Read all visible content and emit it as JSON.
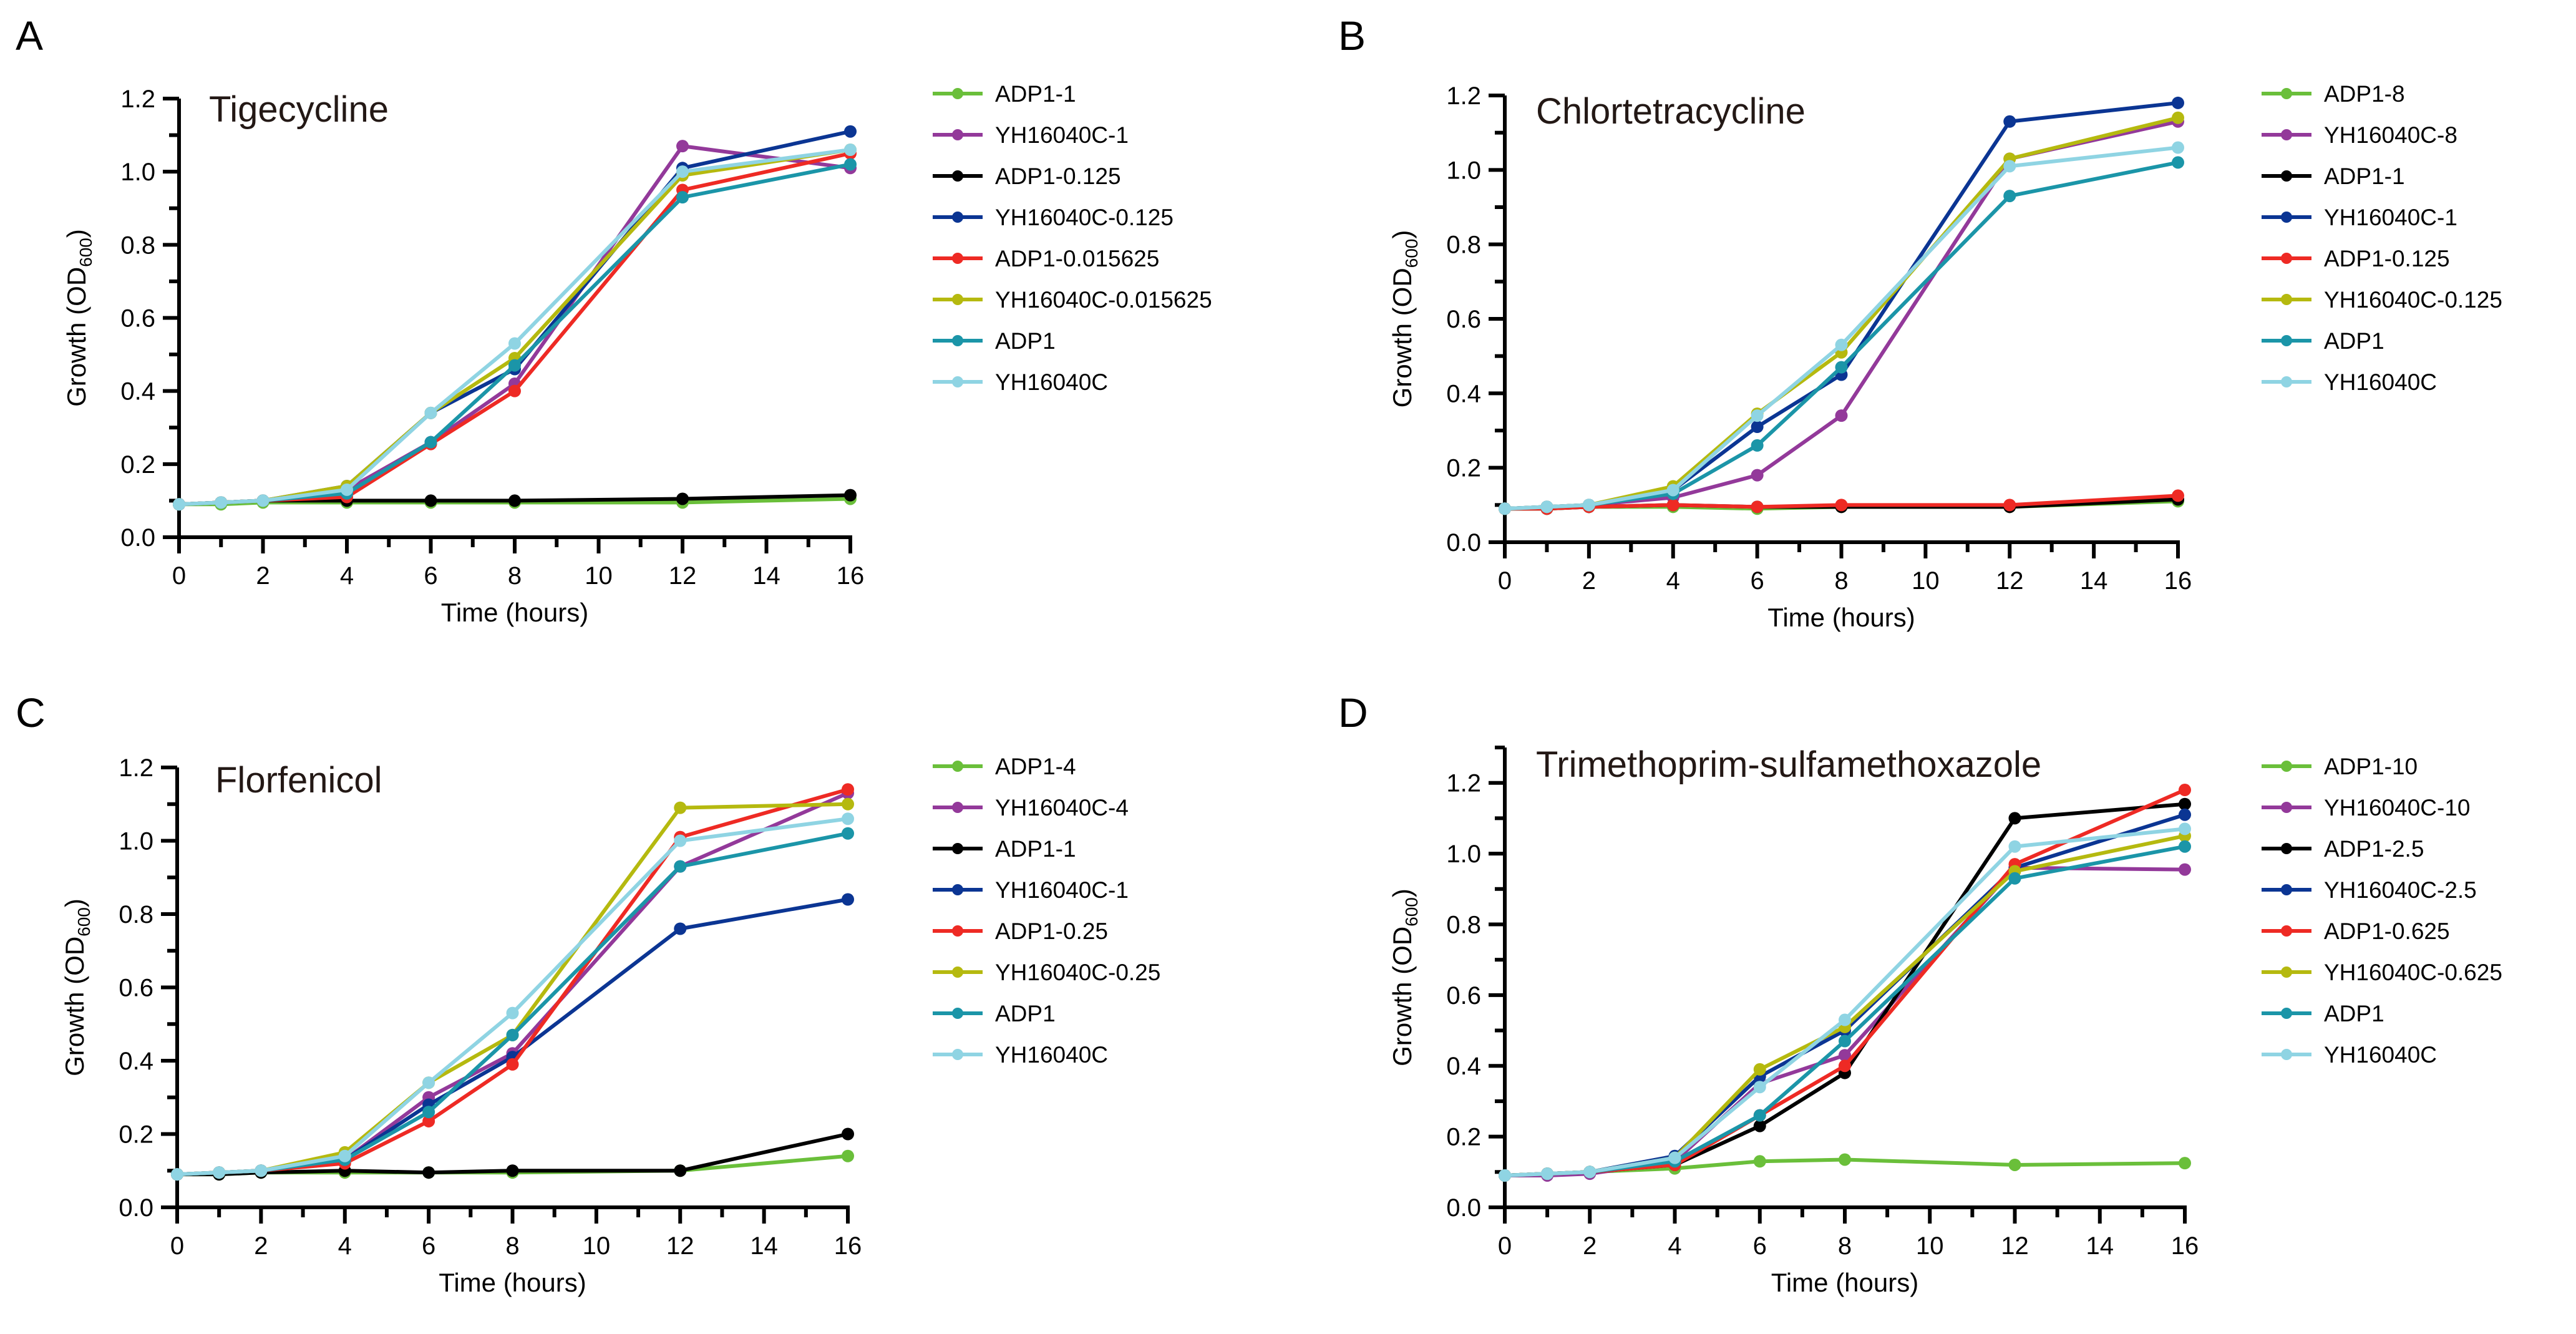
{
  "chart_data": [
    {
      "type": "line",
      "panel": "A",
      "title": "Tigecycline",
      "xlabel": "Time (hours)",
      "ylabel": "Growth (OD",
      "ylabel_sub": "600",
      "ylabel_end": ")",
      "xlim": [
        0,
        16
      ],
      "ylim": [
        0,
        1.2
      ],
      "xticks": [
        0,
        2,
        4,
        6,
        8,
        10,
        12,
        14,
        16
      ],
      "yticks": [
        "0.0",
        "0.2",
        "0.4",
        "0.6",
        "0.8",
        "1.0",
        "1.2"
      ],
      "x": [
        0,
        1,
        2,
        4,
        6,
        8,
        12,
        16
      ],
      "series": [
        {
          "name": "ADP1-1",
          "color": "#6abf3a",
          "values": [
            0.09,
            0.09,
            0.095,
            0.095,
            0.095,
            0.095,
            0.095,
            0.105
          ]
        },
        {
          "name": "YH16040C-1",
          "color": "#93399a",
          "values": [
            0.09,
            0.095,
            0.1,
            0.13,
            0.26,
            0.42,
            1.07,
            1.01
          ]
        },
        {
          "name": "ADP1-0.125",
          "color": "#000000",
          "values": [
            0.09,
            0.095,
            0.1,
            0.1,
            0.1,
            0.1,
            0.105,
            0.115
          ]
        },
        {
          "name": "YH16040C-0.125",
          "color": "#0b3593",
          "values": [
            0.09,
            0.095,
            0.1,
            0.14,
            0.34,
            0.46,
            1.01,
            1.11
          ]
        },
        {
          "name": "ADP1-0.015625",
          "color": "#ee2a24",
          "values": [
            0.09,
            0.095,
            0.1,
            0.11,
            0.255,
            0.4,
            0.95,
            1.05
          ]
        },
        {
          "name": "YH16040C-0.015625",
          "color": "#b5b90f",
          "values": [
            0.09,
            0.095,
            0.1,
            0.14,
            0.34,
            0.49,
            0.99,
            1.06
          ]
        },
        {
          "name": "ADP1",
          "color": "#1b95a8",
          "values": [
            0.09,
            0.095,
            0.1,
            0.12,
            0.26,
            0.47,
            0.93,
            1.02
          ]
        },
        {
          "name": "YH16040C",
          "color": "#8fd4e3",
          "values": [
            0.09,
            0.095,
            0.1,
            0.13,
            0.34,
            0.53,
            1.0,
            1.06
          ]
        }
      ]
    },
    {
      "type": "line",
      "panel": "B",
      "title": "Chlortetracycline",
      "xlabel": "Time (hours)",
      "ylabel": "Growth (OD",
      "ylabel_sub": "600",
      "ylabel_end": ")",
      "xlim": [
        0,
        16
      ],
      "ylim": [
        0,
        1.2
      ],
      "xticks": [
        0,
        2,
        4,
        6,
        8,
        10,
        12,
        14,
        16
      ],
      "yticks": [
        "0.0",
        "0.2",
        "0.4",
        "0.6",
        "0.8",
        "1.0",
        "1.2"
      ],
      "x": [
        0,
        1,
        2,
        4,
        6,
        8,
        12,
        16
      ],
      "series": [
        {
          "name": "ADP1-8",
          "color": "#6abf3a",
          "values": [
            0.09,
            0.09,
            0.095,
            0.095,
            0.09,
            0.095,
            0.095,
            0.11
          ]
        },
        {
          "name": "YH16040C-8",
          "color": "#93399a",
          "values": [
            0.09,
            0.095,
            0.1,
            0.12,
            0.18,
            0.34,
            1.03,
            1.13
          ]
        },
        {
          "name": "ADP1-1",
          "color": "#000000",
          "values": [
            0.09,
            0.09,
            0.095,
            0.1,
            0.095,
            0.095,
            0.095,
            0.115
          ]
        },
        {
          "name": "YH16040C-1",
          "color": "#0b3593",
          "values": [
            0.09,
            0.095,
            0.1,
            0.14,
            0.31,
            0.45,
            1.13,
            1.18
          ]
        },
        {
          "name": "ADP1-0.125",
          "color": "#ee2a24",
          "values": [
            0.09,
            0.09,
            0.095,
            0.1,
            0.095,
            0.1,
            0.1,
            0.125
          ]
        },
        {
          "name": "YH16040C-0.125",
          "color": "#b5b90f",
          "values": [
            0.09,
            0.095,
            0.1,
            0.15,
            0.345,
            0.51,
            1.03,
            1.14
          ]
        },
        {
          "name": "ADP1",
          "color": "#1b95a8",
          "values": [
            0.09,
            0.095,
            0.1,
            0.13,
            0.26,
            0.47,
            0.93,
            1.02
          ]
        },
        {
          "name": "YH16040C",
          "color": "#8fd4e3",
          "values": [
            0.09,
            0.095,
            0.1,
            0.14,
            0.34,
            0.53,
            1.01,
            1.06
          ]
        }
      ]
    },
    {
      "type": "line",
      "panel": "C",
      "title": "Florfenicol",
      "xlabel": "Time (hours)",
      "ylabel": "Growth (OD",
      "ylabel_sub": "600",
      "ylabel_end": ")",
      "xlim": [
        0,
        16
      ],
      "ylim": [
        0,
        1.2
      ],
      "xticks": [
        0,
        2,
        4,
        6,
        8,
        10,
        12,
        14,
        16
      ],
      "yticks": [
        "0.0",
        "0.2",
        "0.4",
        "0.6",
        "0.8",
        "1.0",
        "1.2"
      ],
      "x": [
        0,
        1,
        2,
        4,
        6,
        8,
        12,
        16
      ],
      "series": [
        {
          "name": "ADP1-4",
          "color": "#6abf3a",
          "values": [
            0.09,
            0.09,
            0.095,
            0.095,
            0.095,
            0.095,
            0.1,
            0.14
          ]
        },
        {
          "name": "YH16040C-4",
          "color": "#93399a",
          "values": [
            0.09,
            0.095,
            0.1,
            0.13,
            0.3,
            0.42,
            0.93,
            1.13
          ]
        },
        {
          "name": "ADP1-1",
          "color": "#000000",
          "values": [
            0.09,
            0.09,
            0.095,
            0.1,
            0.095,
            0.1,
            0.1,
            0.2
          ]
        },
        {
          "name": "YH16040C-1",
          "color": "#0b3593",
          "values": [
            0.09,
            0.095,
            0.1,
            0.13,
            0.28,
            0.41,
            0.76,
            0.84
          ]
        },
        {
          "name": "ADP1-0.25",
          "color": "#ee2a24",
          "values": [
            0.09,
            0.095,
            0.1,
            0.12,
            0.235,
            0.39,
            1.01,
            1.14
          ]
        },
        {
          "name": "YH16040C-0.25",
          "color": "#b5b90f",
          "values": [
            0.09,
            0.095,
            0.1,
            0.15,
            0.34,
            0.47,
            1.09,
            1.1
          ]
        },
        {
          "name": "ADP1",
          "color": "#1b95a8",
          "values": [
            0.09,
            0.095,
            0.1,
            0.13,
            0.26,
            0.47,
            0.93,
            1.02
          ]
        },
        {
          "name": "YH16040C",
          "color": "#8fd4e3",
          "values": [
            0.09,
            0.095,
            0.1,
            0.14,
            0.34,
            0.53,
            1.0,
            1.06
          ]
        }
      ]
    },
    {
      "type": "line",
      "panel": "D",
      "title": "Trimethoprim-sulfamethoxazole",
      "xlabel": "Time (hours)",
      "ylabel": "Growth (OD",
      "ylabel_sub": "600",
      "ylabel_end": ")",
      "xlim": [
        0,
        16
      ],
      "ylim": [
        0,
        1.3
      ],
      "xticks": [
        0,
        2,
        4,
        6,
        8,
        10,
        12,
        14,
        16
      ],
      "yticks": [
        "0.0",
        "0.2",
        "0.4",
        "0.6",
        "0.8",
        "1.0",
        "1.2"
      ],
      "x": [
        0,
        1,
        2,
        4,
        6,
        8,
        12,
        16
      ],
      "series": [
        {
          "name": "ADP1-10",
          "color": "#6abf3a",
          "values": [
            0.09,
            0.095,
            0.1,
            0.11,
            0.13,
            0.135,
            0.12,
            0.125
          ]
        },
        {
          "name": "YH16040C-10",
          "color": "#93399a",
          "values": [
            0.09,
            0.09,
            0.095,
            0.13,
            0.35,
            0.43,
            0.96,
            0.955
          ]
        },
        {
          "name": "ADP1-2.5",
          "color": "#000000",
          "values": [
            0.09,
            0.095,
            0.1,
            0.12,
            0.23,
            0.38,
            1.1,
            1.14
          ]
        },
        {
          "name": "YH16040C-2.5",
          "color": "#0b3593",
          "values": [
            0.09,
            0.095,
            0.1,
            0.145,
            0.37,
            0.5,
            0.96,
            1.11
          ]
        },
        {
          "name": "ADP1-0.625",
          "color": "#ee2a24",
          "values": [
            0.09,
            0.095,
            0.1,
            0.12,
            0.26,
            0.4,
            0.97,
            1.18
          ]
        },
        {
          "name": "YH16040C-0.625",
          "color": "#b5b90f",
          "values": [
            0.09,
            0.095,
            0.1,
            0.14,
            0.39,
            0.51,
            0.95,
            1.05
          ]
        },
        {
          "name": "ADP1",
          "color": "#1b95a8",
          "values": [
            0.09,
            0.095,
            0.1,
            0.13,
            0.26,
            0.47,
            0.93,
            1.02
          ]
        },
        {
          "name": "YH16040C",
          "color": "#8fd4e3",
          "values": [
            0.09,
            0.095,
            0.1,
            0.14,
            0.34,
            0.53,
            1.02,
            1.07
          ]
        }
      ]
    }
  ]
}
